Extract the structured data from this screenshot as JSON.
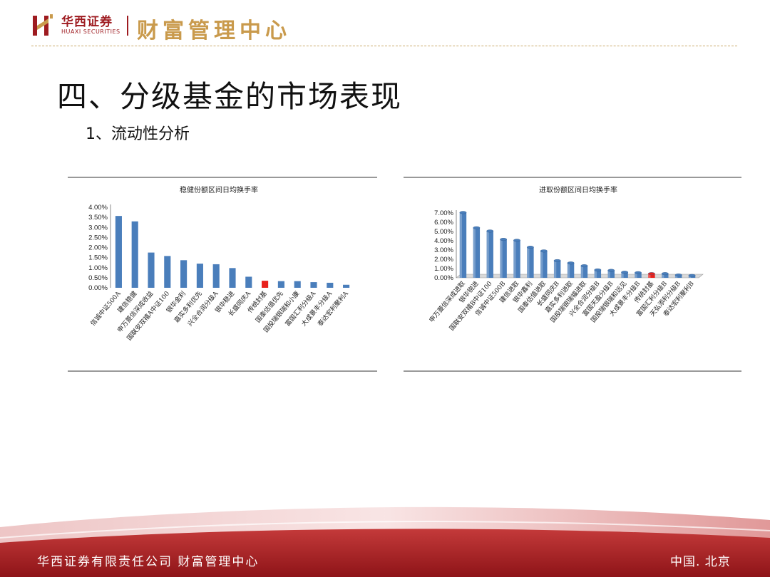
{
  "header": {
    "brand_cn": "华西证券",
    "brand_en": "HUAXI SECURITIES",
    "center_title": "财富管理中心"
  },
  "slide": {
    "title": "四、分级基金的市场表现",
    "subtitle": "1、流动性分析"
  },
  "footer": {
    "left": "华西证券有限责任公司   财富管理中心",
    "right": "中国. 北京"
  },
  "colors": {
    "bar": "#4a7ebb",
    "highlight": "#e8211c",
    "brand_red": "#9e1b20",
    "gold": "#c99a4c"
  },
  "chart_data": [
    {
      "type": "bar",
      "title": "稳健份额区间日均换手率",
      "xlabel": "",
      "ylabel": "",
      "ylim": [
        0,
        4.0
      ],
      "yticks": [
        "4.00%",
        "3.50%",
        "3.00%",
        "2.50%",
        "2.00%",
        "1.50%",
        "1.00%",
        "0.50%",
        "0.00%"
      ],
      "categories": [
        "信诚中证500A",
        "建信稳健",
        "申万菱信深成收益",
        "国联安双禧A中证100",
        "银华金利",
        "嘉实多利优先",
        "兴全合润分级A",
        "银华稳进",
        "长盛同庆A",
        "传统封基",
        "国泰估值优先",
        "国投瑞银瑞和小康",
        "富国汇利分级A",
        "大成景丰分级A",
        "泰达宏利聚利A"
      ],
      "values": [
        3.57,
        3.3,
        1.75,
        1.58,
        1.37,
        1.2,
        1.17,
        0.98,
        0.55,
        0.35,
        0.33,
        0.33,
        0.28,
        0.25,
        0.15
      ],
      "highlight_index": 9,
      "grid": false,
      "legend": "none"
    },
    {
      "type": "bar",
      "title": "进取份额区间日均换手率",
      "xlabel": "",
      "ylabel": "",
      "ylim": [
        0,
        7.0
      ],
      "yticks": [
        "7.00%",
        "6.00%",
        "5.00%",
        "4.00%",
        "3.00%",
        "2.00%",
        "1.00%",
        "0.00%"
      ],
      "categories": [
        "申万菱信深成进取",
        "银华锐进",
        "国联安双禧B中证100",
        "信诚中证500B",
        "建信进取",
        "银华鑫利",
        "国泰估值进取",
        "长盛同庆B",
        "嘉实多利进取",
        "国投瑞银瑞福进取",
        "兴全合润分级B",
        "富国天盈分级B",
        "国投瑞银瑞和远见",
        "大成景丰分级B",
        "传统封基",
        "富国汇利分级B",
        "天弘添利分级B",
        "泰达宏利聚利B"
      ],
      "values": [
        7.05,
        5.4,
        5.05,
        4.15,
        4.05,
        3.3,
        2.9,
        1.85,
        1.6,
        1.3,
        0.85,
        0.8,
        0.6,
        0.55,
        0.45,
        0.45,
        0.3,
        0.25
      ],
      "highlight_index": 14,
      "grid": false,
      "legend": "none"
    }
  ]
}
